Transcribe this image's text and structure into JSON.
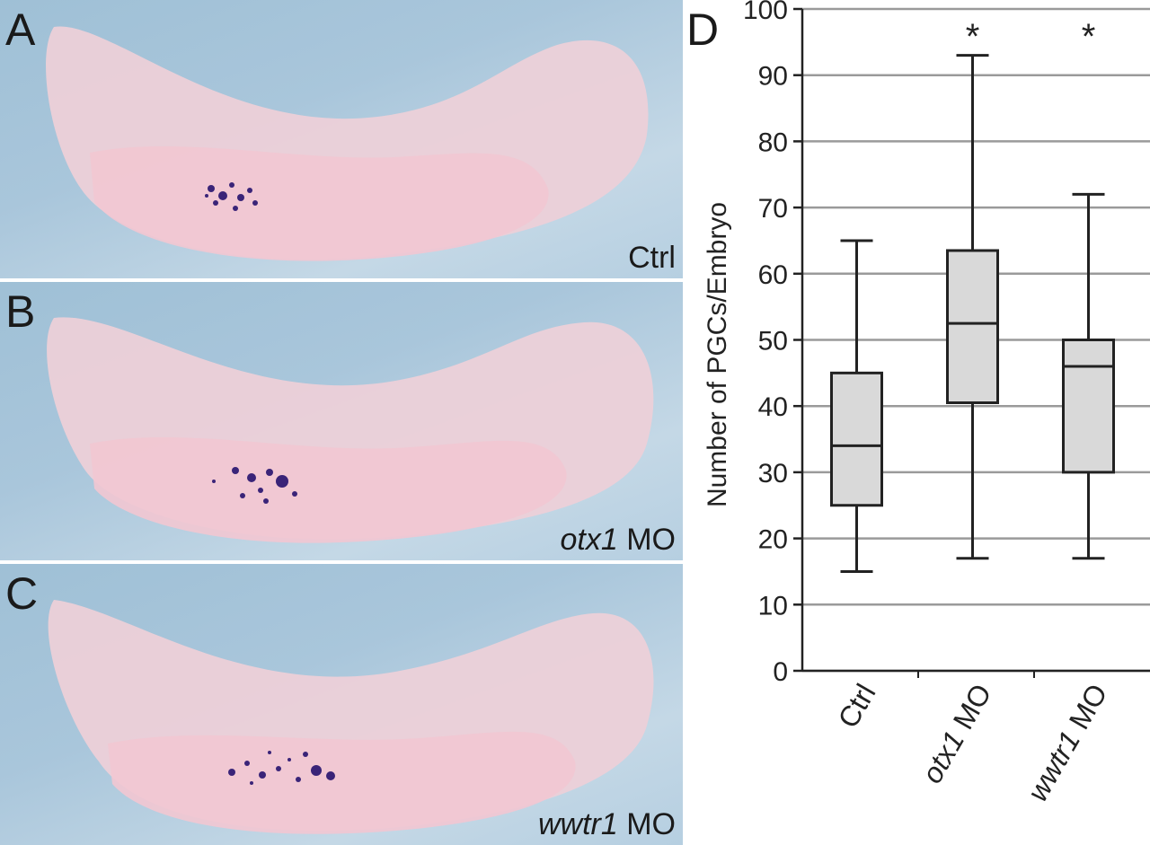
{
  "panels": [
    {
      "letter": "A",
      "caption_italic": "",
      "caption_text": "Ctrl"
    },
    {
      "letter": "B",
      "caption_italic": "otx1",
      "caption_text": " MO"
    },
    {
      "letter": "C",
      "caption_italic": "wwtr1",
      "caption_text": " MO"
    }
  ],
  "chart_data": {
    "type": "boxplot",
    "panel_label": "D",
    "ylabel": "Number of PGCs/Embryo",
    "ylim": [
      0,
      100
    ],
    "yticks": [
      0,
      10,
      20,
      30,
      40,
      50,
      60,
      70,
      80,
      90,
      100
    ],
    "grid": true,
    "categories": [
      {
        "italic": "",
        "text": "Ctrl"
      },
      {
        "italic": "otx1",
        "text": " MO"
      },
      {
        "italic": "wwtr1",
        "text": " MO"
      }
    ],
    "boxes": [
      {
        "min": 15,
        "q1": 25,
        "median": 34,
        "q3": 45,
        "max": 65,
        "significance": ""
      },
      {
        "min": 17,
        "q1": 40.5,
        "median": 52.5,
        "q3": 63.5,
        "max": 93,
        "significance": "*"
      },
      {
        "min": 17,
        "q1": 30,
        "median": 46,
        "q3": 50,
        "max": 72,
        "significance": "*"
      }
    ],
    "box_fill": "#d9d9d9",
    "grid_color": "#9a9a9a",
    "line_color": "#222222"
  },
  "embryo_colors": {
    "body": "#ecc8d2",
    "yolk": "#f0c4cf",
    "stain": "#2e1b6b"
  }
}
